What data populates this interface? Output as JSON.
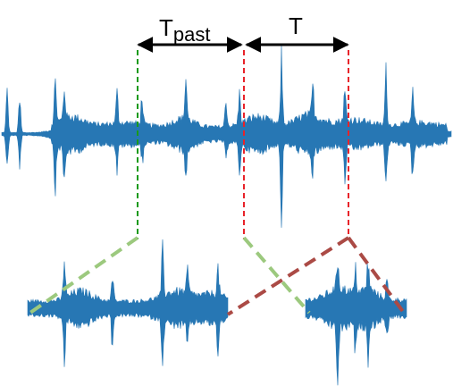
{
  "labels": {
    "t_past_main": "T",
    "t_past_sub": "past",
    "t": "T"
  },
  "colors": {
    "waveform": "#2777b4",
    "past_marker": "#1a9a1a",
    "current_marker": "#e8232a",
    "arrow": "#000000",
    "past_link": "#9cc97e",
    "current_link": "#ab4a45"
  }
}
